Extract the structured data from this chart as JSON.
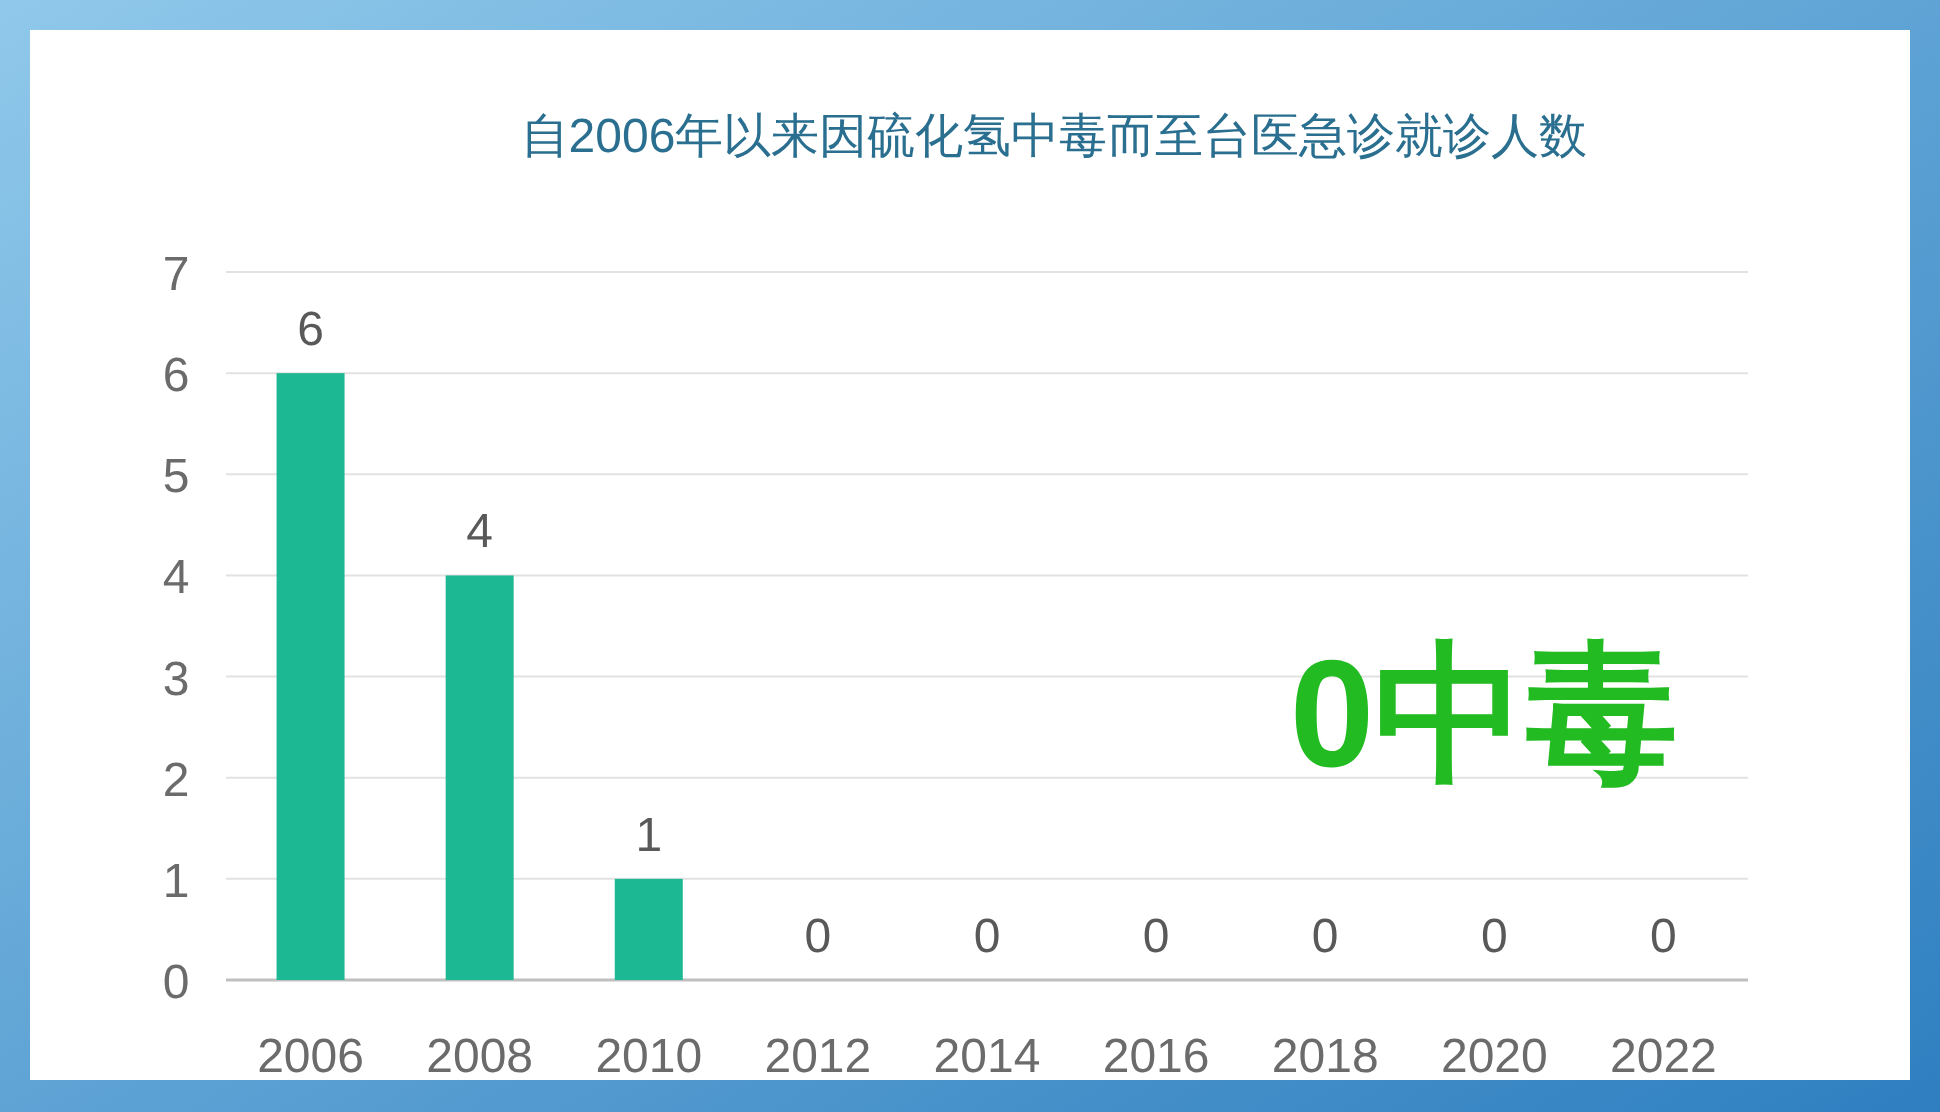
{
  "chart_data": {
    "type": "bar",
    "title": "自2006年以来因硫化氢中毒而至台医急诊就诊人数",
    "categories": [
      "2006",
      "2008",
      "2010",
      "2012",
      "2014",
      "2016",
      "2018",
      "2020",
      "2022"
    ],
    "values": [
      6,
      4,
      1,
      0,
      0,
      0,
      0,
      0,
      0
    ],
    "color": "#1bb893",
    "ylim": [
      0,
      7
    ],
    "yticks": [
      0,
      1,
      2,
      3,
      4,
      5,
      6,
      7
    ],
    "grid": "y",
    "data_labels": true,
    "annotations": [
      "0中毒"
    ]
  }
}
